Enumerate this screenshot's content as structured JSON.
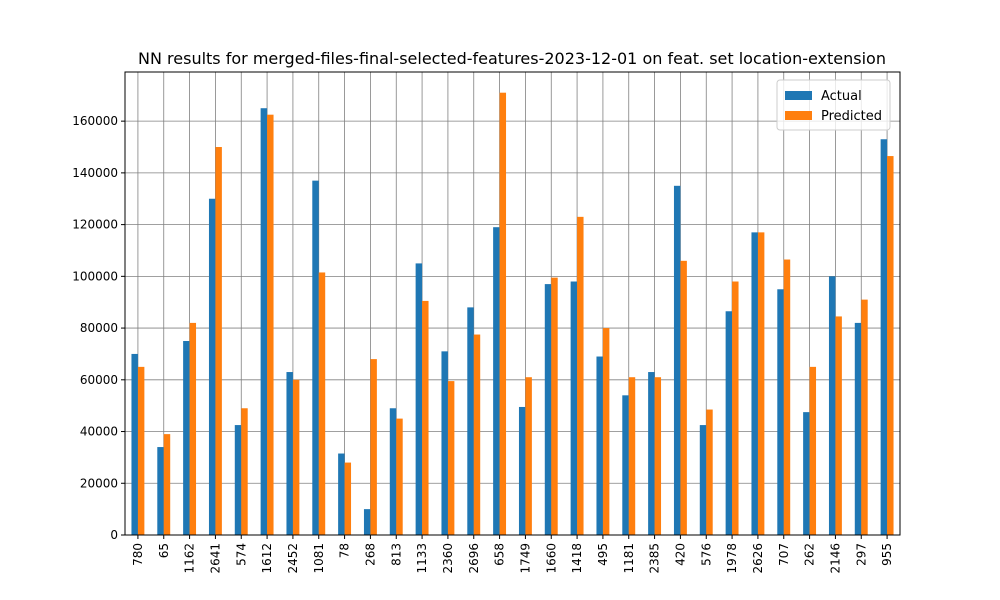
{
  "chart_data": {
    "type": "bar",
    "title": "NN results for merged-files-final-selected-features-2023-12-01 on feat. set location-extension",
    "xlabel": "",
    "ylabel": "",
    "categories": [
      "780",
      "65",
      "1162",
      "2641",
      "574",
      "1612",
      "2452",
      "1081",
      "78",
      "268",
      "813",
      "1133",
      "2360",
      "2696",
      "658",
      "1749",
      "1660",
      "1418",
      "495",
      "1181",
      "2385",
      "420",
      "576",
      "1978",
      "2626",
      "707",
      "262",
      "2146",
      "297",
      "955"
    ],
    "series": [
      {
        "name": "Actual",
        "color": "#1f77b4",
        "values": [
          70000,
          34000,
          75000,
          130000,
          42500,
          165000,
          63000,
          137000,
          31500,
          10000,
          49000,
          105000,
          71000,
          88000,
          119000,
          49500,
          97000,
          98000,
          69000,
          54000,
          63000,
          135000,
          42500,
          86500,
          117000,
          95000,
          47500,
          100000,
          82000,
          153000
        ]
      },
      {
        "name": "Predicted",
        "color": "#ff7f0e",
        "values": [
          65000,
          39000,
          82000,
          150000,
          49000,
          162500,
          60000,
          101500,
          28000,
          68000,
          45000,
          90500,
          59500,
          77500,
          171000,
          61000,
          99500,
          123000,
          80000,
          61000,
          61000,
          106000,
          48500,
          98000,
          117000,
          106500,
          65000,
          84500,
          91000,
          146500
        ]
      }
    ],
    "yticks": [
      "0",
      "20000",
      "40000",
      "60000",
      "80000",
      "100000",
      "120000",
      "140000",
      "160000"
    ],
    "ylim": [
      0,
      179000
    ],
    "grid": true,
    "legend_position": "top-right"
  }
}
